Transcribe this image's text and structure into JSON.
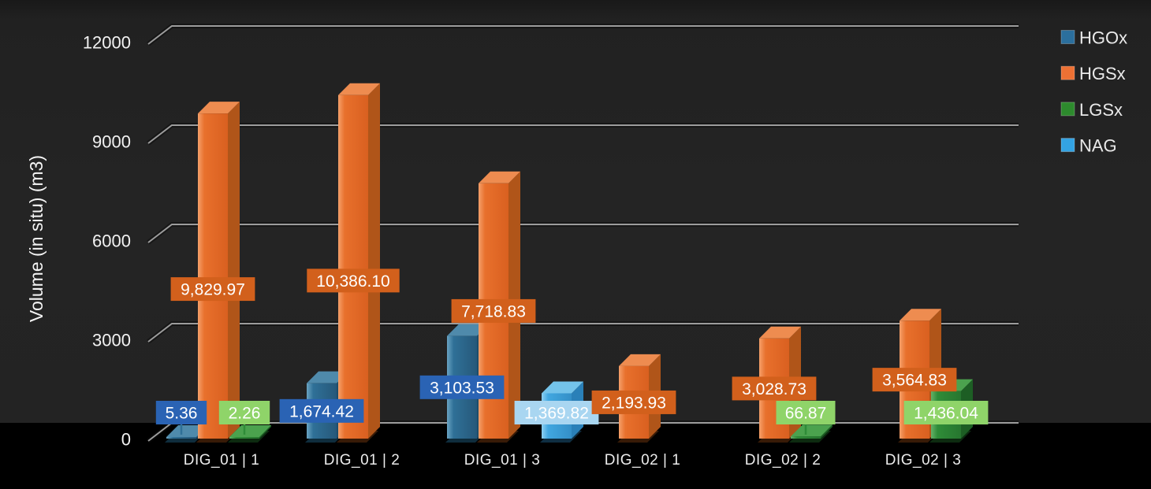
{
  "chart_data": {
    "type": "bar",
    "title": "",
    "ylabel": "Volume (in situ) (m3)",
    "ylim": [
      0,
      12000
    ],
    "yticks": [
      0,
      3000,
      6000,
      9000,
      12000
    ],
    "grid": "horizontal-3d",
    "legend_position": "top-right",
    "background_color": "#232323",
    "gridline_color": "#9c9c9c",
    "text_color": "#f2f2f2",
    "categories": [
      "DIG_01 | 1",
      "DIG_01 | 2",
      "DIG_01 | 3",
      "DIG_02 | 1",
      "DIG_02 | 2",
      "DIG_02 | 3"
    ],
    "series": [
      {
        "name": "HGOx",
        "values": [
          5.36,
          1674.42,
          3103.53,
          null,
          null,
          null
        ],
        "labels": [
          "5.36",
          "1,674.42",
          "3,103.53",
          "",
          "",
          ""
        ],
        "colors": {
          "bar": "#2f7097",
          "bar_dark": "#26587a",
          "bar_light": "#6aa3c2",
          "side": "#1d4d6b",
          "top": "#4f8aab",
          "base": "#0f2d3d",
          "label_bg": "#2a63b4",
          "legend": "#2b6f9d"
        }
      },
      {
        "name": "HGSx",
        "values": [
          9829.97,
          10386.1,
          7718.83,
          2193.93,
          3028.73,
          3564.83
        ],
        "labels": [
          "9,829.97",
          "10,386.10",
          "7,718.83",
          "2,193.93",
          "3,028.73",
          "3,564.83"
        ],
        "colors": {
          "bar": "#e8702c",
          "bar_dark": "#d96020",
          "bar_light": "#f5a06a",
          "side": "#b05519",
          "top": "#ee8c50",
          "base": "#381b07",
          "label_bg": "#d2601c",
          "legend": "#ed7134"
        }
      },
      {
        "name": "LGSx",
        "values": [
          2.26,
          null,
          null,
          null,
          66.87,
          1436.04
        ],
        "labels": [
          "2.26",
          "",
          "",
          "",
          "66.87",
          "1,436.04"
        ],
        "colors": {
          "bar": "#2f8c38",
          "bar_dark": "#27762f",
          "bar_light": "#63b168",
          "side": "#1d5e24",
          "top": "#4ba24e",
          "base": "#0d2b10",
          "label_bg": "#8fd469",
          "legend": "#2d8a2d"
        }
      },
      {
        "name": "NAG",
        "values": [
          null,
          null,
          1369.82,
          null,
          null,
          null
        ],
        "labels": [
          "",
          "",
          "1,369.82",
          "",
          "",
          ""
        ],
        "colors": {
          "bar": "#41a7e0",
          "bar_dark": "#348fc7",
          "bar_light": "#8ed0f1",
          "side": "#2a80b8",
          "top": "#74c3ea",
          "base": "#0f2e42",
          "label_bg": "#a9d6f1",
          "legend": "#33a3e3"
        }
      }
    ]
  }
}
